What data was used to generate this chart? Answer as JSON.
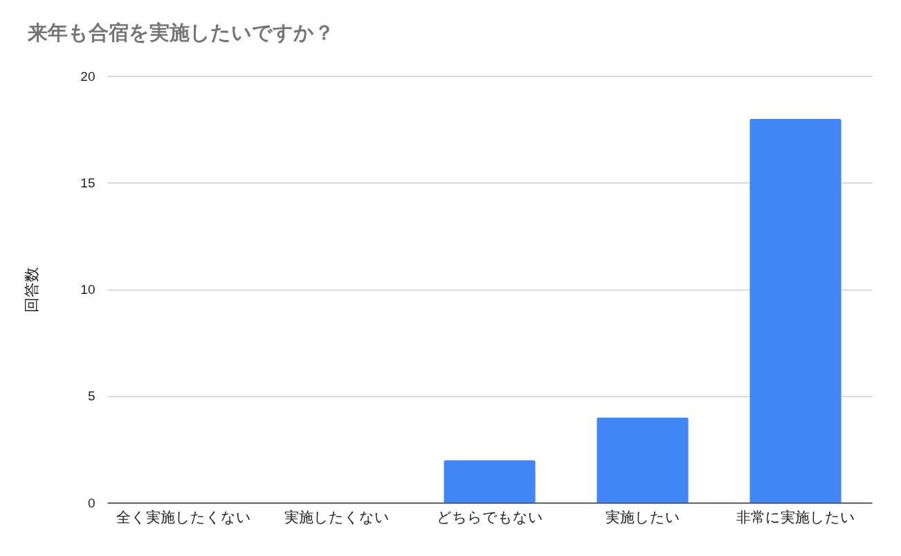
{
  "chart_data": {
    "type": "bar",
    "title": "来年も合宿を実施したいですか？",
    "ylabel": "回答数",
    "categories": [
      "全く実施したくない",
      "実施したくない",
      "どちらでもない",
      "実施したい",
      "非常に実施したい"
    ],
    "values": [
      0,
      0,
      2,
      4,
      18
    ],
    "color": "#4285f4",
    "ylim": [
      0,
      20
    ],
    "yticks": [
      0,
      5,
      10,
      15,
      20
    ],
    "grid": "y"
  }
}
